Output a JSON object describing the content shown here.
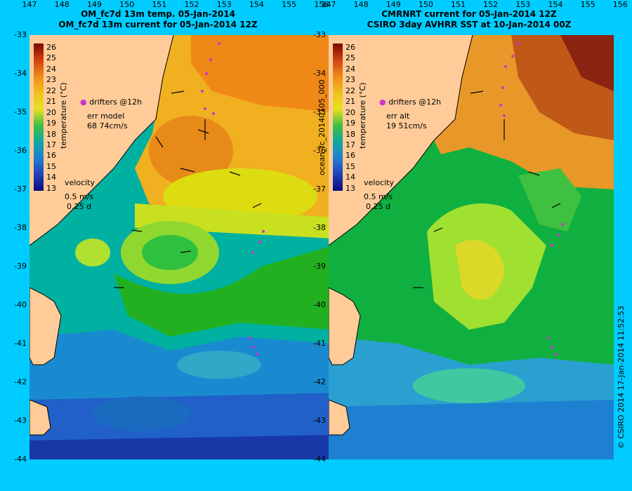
{
  "left": {
    "title_line1": "OM_fc7d 13m temp. 05-Jan-2014",
    "title_line2": "OM_fc7d 13m current for 05-Jan-2014 12Z",
    "drifters_label": "drifters @12h",
    "err_label": "err model",
    "err_value": "68 74cm/s",
    "velocity_label": "velocity",
    "velocity_scale": "0.5 m/s",
    "velocity_time": "0.25 d",
    "colorbar_title": "temperature (°C)"
  },
  "right": {
    "title_line1": "CMRNRT current for 05-Jan-2014 12Z",
    "title_line2": "CSIRO 3day AVHRR SST at 10-Jan-2014 00Z",
    "drifters_label": "drifters @12h",
    "err_label": "err alt",
    "err_value": "19 51cm/s",
    "velocity_label": "velocity",
    "velocity_scale": "0.5 m/s",
    "velocity_time": "0.25 d",
    "colorbar_title": "temperature (°C)"
  },
  "side_label": "ocean_fc_20140105_000",
  "footer_label": "© CSIRO 2014   17-Jan-2014 11:52:53",
  "colorbar_ticks": [
    "26",
    "25",
    "24",
    "23",
    "22",
    "21",
    "20",
    "19",
    "18",
    "17",
    "16",
    "15",
    "14",
    "13"
  ],
  "lat_ticks": [
    "-33",
    "-34",
    "-35",
    "-36",
    "-37",
    "-38",
    "-39",
    "-40",
    "-41",
    "-42",
    "-43",
    "-44"
  ],
  "lon_ticks": [
    "147",
    "148",
    "149",
    "150",
    "151",
    "152",
    "153",
    "154",
    "155",
    "156"
  ],
  "colors": {
    "background": "#00ccff",
    "land": "#ffcc99",
    "drifter": "#cc33cc",
    "scale_warm": "#7a0a00",
    "scale_cold": "#0a0a80"
  }
}
